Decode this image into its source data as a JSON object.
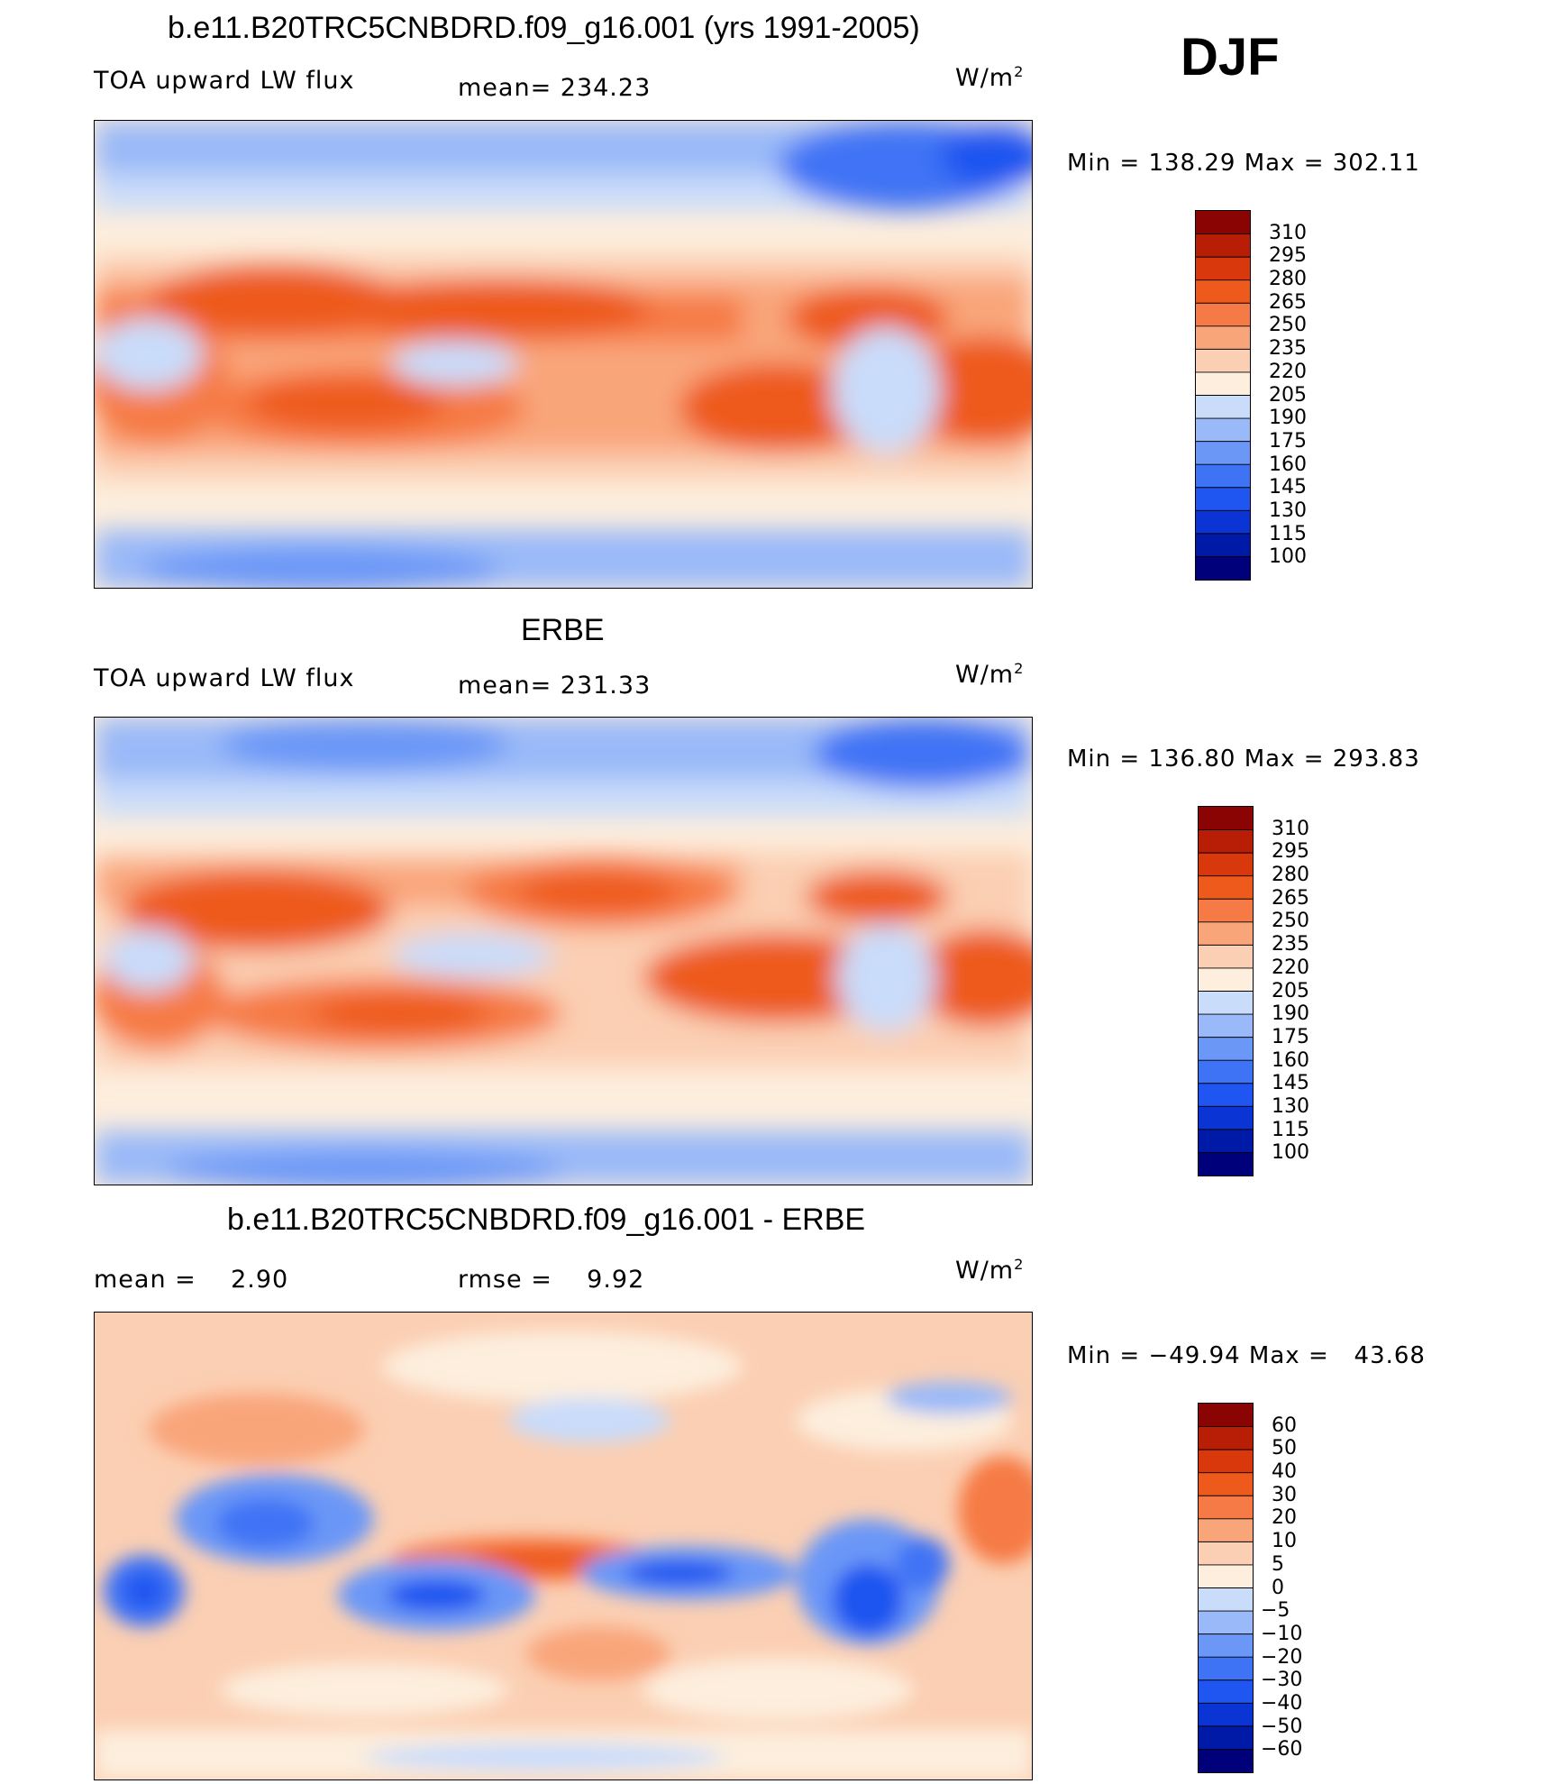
{
  "season": "DJF",
  "unit_base": "W/m",
  "unit_exp": "2",
  "panels": [
    {
      "title": "b.e11.B20TRC5CNBDRD.f09_g16.001 (yrs 1991-2005)",
      "left_label": "TOA upward LW flux",
      "center_label": "mean= 234.23",
      "min_max": "Min = 138.29 Max = 302.11",
      "levels": [
        "310",
        "295",
        "280",
        "265",
        "250",
        "235",
        "220",
        "205",
        "190",
        "175",
        "160",
        "145",
        "130",
        "115",
        "100"
      ]
    },
    {
      "title": "ERBE",
      "left_label": "TOA upward LW flux",
      "center_label": "mean= 231.33",
      "min_max": "Min = 136.80 Max = 293.83",
      "levels": [
        "310",
        "295",
        "280",
        "265",
        "250",
        "235",
        "220",
        "205",
        "190",
        "175",
        "160",
        "145",
        "130",
        "115",
        "100"
      ]
    },
    {
      "title": "b.e11.B20TRC5CNBDRD.f09_g16.001 - ERBE",
      "left_label": "mean =    2.90",
      "center_label": "rmse =    9.92",
      "min_max": "Min = −49.94 Max =   43.68",
      "levels": [
        "60",
        "50",
        "40",
        "30",
        "20",
        "10",
        "5",
        "0",
        "−5",
        "−10",
        "−20",
        "−30",
        "−40",
        "−50",
        "−60"
      ]
    }
  ],
  "chart_data": [
    {
      "type": "heatmap",
      "title": "b.e11.B20TRC5CNBDRD.f09_g16.001 (yrs 1991-2005)",
      "variable": "TOA upward LW flux",
      "units": "W/m2",
      "mean": 234.23,
      "min": 138.29,
      "max": 302.11,
      "contour_levels": [
        100,
        115,
        130,
        145,
        160,
        175,
        190,
        205,
        220,
        235,
        250,
        265,
        280,
        295,
        310
      ],
      "colors": [
        "#00007a",
        "#001aa8",
        "#0a35d4",
        "#1f55f0",
        "#3f73f5",
        "#6b97f7",
        "#9ab9f8",
        "#c9dcfa",
        "#fdeedd",
        "#fbcfb3",
        "#f9a57a",
        "#f67a45",
        "#ee5a1c",
        "#d8380c",
        "#b81d06",
        "#8a0404"
      ]
    },
    {
      "type": "heatmap",
      "title": "ERBE",
      "variable": "TOA upward LW flux",
      "units": "W/m2",
      "mean": 231.33,
      "min": 136.8,
      "max": 293.83,
      "contour_levels": [
        100,
        115,
        130,
        145,
        160,
        175,
        190,
        205,
        220,
        235,
        250,
        265,
        280,
        295,
        310
      ],
      "colors": [
        "#00007a",
        "#001aa8",
        "#0a35d4",
        "#1f55f0",
        "#3f73f5",
        "#6b97f7",
        "#9ab9f8",
        "#c9dcfa",
        "#fdeedd",
        "#fbcfb3",
        "#f9a57a",
        "#f67a45",
        "#ee5a1c",
        "#d8380c",
        "#b81d06",
        "#8a0404"
      ]
    },
    {
      "type": "heatmap",
      "title": "b.e11.B20TRC5CNBDRD.f09_g16.001 - ERBE",
      "units": "W/m2",
      "mean": 2.9,
      "rmse": 9.92,
      "min": -49.94,
      "max": 43.68,
      "contour_levels": [
        -60,
        -50,
        -40,
        -30,
        -20,
        -10,
        -5,
        0,
        5,
        10,
        20,
        30,
        40,
        50,
        60
      ],
      "colors": [
        "#00007a",
        "#001aa8",
        "#0a35d4",
        "#1f55f0",
        "#3f73f5",
        "#6b97f7",
        "#9ab9f8",
        "#c9dcfa",
        "#fdeedd",
        "#fbcfb3",
        "#f9a57a",
        "#f67a45",
        "#ee5a1c",
        "#d8380c",
        "#b81d06",
        "#8a0404"
      ]
    }
  ]
}
